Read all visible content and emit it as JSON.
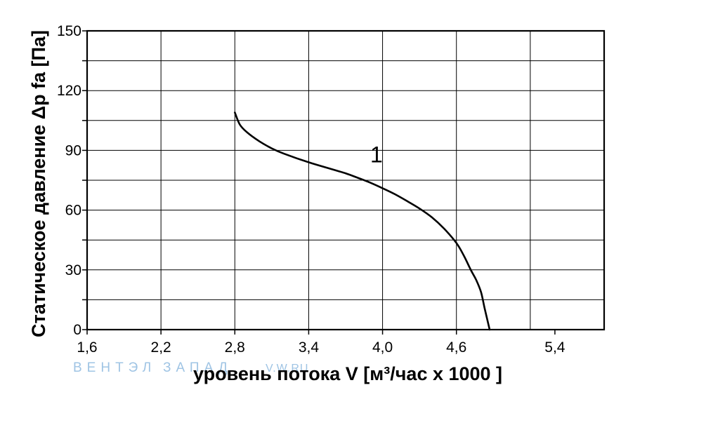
{
  "chart_data": {
    "type": "line",
    "title": "",
    "xlabel": "уровень потока  V [м³/час x 1000 ]",
    "ylabel": "Статическое давление  Δp fa [Па]",
    "xlim": [
      1.6,
      5.8
    ],
    "ylim": [
      0,
      150
    ],
    "x_ticks": [
      1.6,
      2.2,
      2.8,
      3.4,
      4.0,
      4.6,
      5.4
    ],
    "x_tick_labels": [
      "1,6",
      "2,2",
      "2,8",
      "3,4",
      "4,0",
      "4,6",
      "5,4"
    ],
    "x_grid": [
      1.6,
      2.2,
      2.8,
      3.4,
      4.0,
      4.6,
      5.2,
      5.8
    ],
    "y_ticks": [
      0,
      30,
      60,
      90,
      120,
      150
    ],
    "y_tick_labels": [
      "0",
      "30",
      "60",
      "90",
      "120",
      "150"
    ],
    "y_grid": [
      0,
      15,
      30,
      45,
      60,
      75,
      90,
      105,
      120,
      135,
      150
    ],
    "grid": true,
    "series": [
      {
        "name": "1",
        "color": "#000000",
        "x": [
          2.8,
          2.84,
          2.9,
          3.0,
          3.1,
          3.2,
          3.4,
          3.6,
          3.7,
          3.8,
          3.9,
          4.0,
          4.1,
          4.2,
          4.3,
          4.4,
          4.5,
          4.6,
          4.66,
          4.72,
          4.76,
          4.8,
          4.83,
          4.87
        ],
        "y": [
          109,
          103,
          99,
          94.5,
          91,
          88.3,
          84,
          80.3,
          78.5,
          76.2,
          73.8,
          71,
          68,
          64.5,
          60.8,
          56.4,
          50.7,
          43.5,
          37.2,
          29.6,
          25,
          18.8,
          10.5,
          0
        ]
      }
    ],
    "annotations": [
      {
        "text": "1",
        "x": 3.9,
        "y": 84
      }
    ]
  },
  "watermark": {
    "text_a": "ВЕНТЭЛ",
    "text_b": "ЗАПАД",
    "text_c": "V.W.RU",
    "color": "#9fc4e4"
  }
}
